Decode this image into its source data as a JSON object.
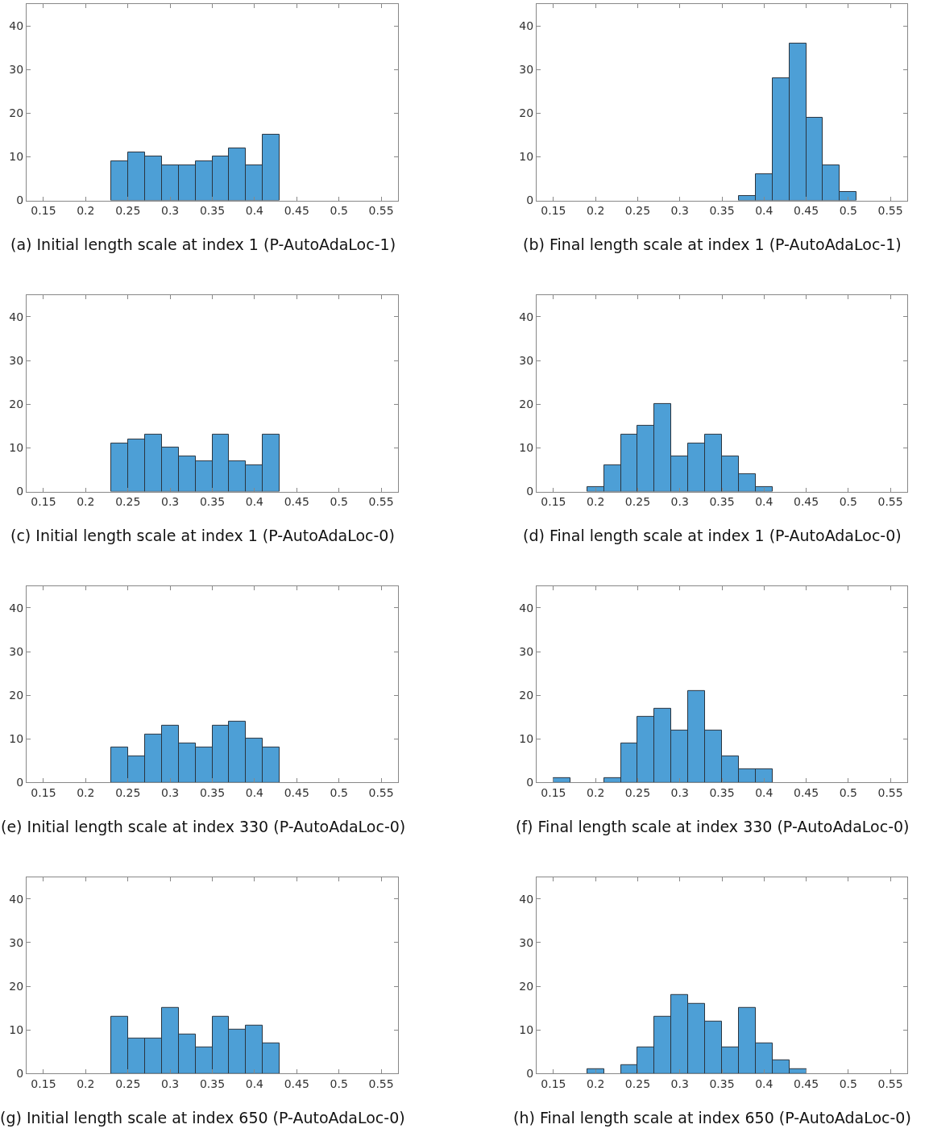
{
  "chart_data": [
    {
      "type": "histogram",
      "title": "(a) Initial length scale at index 1 (P-AutoAdaLoc-1)",
      "bins": [
        0.23,
        0.25,
        0.27,
        0.29,
        0.31,
        0.33,
        0.35,
        0.37,
        0.39,
        0.41,
        0.43
      ],
      "values": [
        9,
        11,
        10,
        8,
        8,
        9,
        10,
        12,
        8,
        15
      ],
      "color": "#4d9fd6",
      "xlim": [
        0.13,
        0.57
      ],
      "ylim": [
        0,
        45
      ],
      "xticks": [
        0.15,
        0.2,
        0.25,
        0.3,
        0.35,
        0.4,
        0.45,
        0.5,
        0.55
      ],
      "yticks": [
        0,
        10,
        20,
        30,
        40
      ]
    },
    {
      "type": "histogram",
      "title": "(b) Final length scale at index 1 (P-AutoAdaLoc-1)",
      "bins": [
        0.37,
        0.39,
        0.41,
        0.43,
        0.45,
        0.47,
        0.49,
        0.51
      ],
      "values": [
        1,
        6,
        28,
        36,
        19,
        8,
        2
      ],
      "color": "#4d9fd6",
      "xlim": [
        0.13,
        0.57
      ],
      "ylim": [
        0,
        45
      ],
      "xticks": [
        0.15,
        0.2,
        0.25,
        0.3,
        0.35,
        0.4,
        0.45,
        0.5,
        0.55
      ],
      "yticks": [
        0,
        10,
        20,
        30,
        40
      ]
    },
    {
      "type": "histogram",
      "title": "(c) Initial length scale at index 1 (P-AutoAdaLoc-0)",
      "bins": [
        0.23,
        0.25,
        0.27,
        0.29,
        0.31,
        0.33,
        0.35,
        0.37,
        0.39,
        0.41,
        0.43
      ],
      "values": [
        11,
        12,
        13,
        10,
        8,
        7,
        13,
        7,
        6,
        13
      ],
      "color": "#4d9fd6",
      "xlim": [
        0.13,
        0.57
      ],
      "ylim": [
        0,
        45
      ],
      "xticks": [
        0.15,
        0.2,
        0.25,
        0.3,
        0.35,
        0.4,
        0.45,
        0.5,
        0.55
      ],
      "yticks": [
        0,
        10,
        20,
        30,
        40
      ]
    },
    {
      "type": "histogram",
      "title": "(d) Final length scale at index 1 (P-AutoAdaLoc-0)",
      "bins": [
        0.19,
        0.21,
        0.23,
        0.25,
        0.27,
        0.29,
        0.31,
        0.33,
        0.35,
        0.37,
        0.39,
        0.41
      ],
      "values": [
        1,
        6,
        13,
        15,
        20,
        8,
        11,
        13,
        8,
        4,
        1
      ],
      "color": "#4d9fd6",
      "xlim": [
        0.13,
        0.57
      ],
      "ylim": [
        0,
        45
      ],
      "xticks": [
        0.15,
        0.2,
        0.25,
        0.3,
        0.35,
        0.4,
        0.45,
        0.5,
        0.55
      ],
      "yticks": [
        0,
        10,
        20,
        30,
        40
      ]
    },
    {
      "type": "histogram",
      "title": "(e) Initial length scale at index 330 (P-AutoAdaLoc-0)",
      "bins": [
        0.23,
        0.25,
        0.27,
        0.29,
        0.31,
        0.33,
        0.35,
        0.37,
        0.39,
        0.41,
        0.43
      ],
      "values": [
        8,
        6,
        11,
        13,
        9,
        8,
        13,
        14,
        10,
        8
      ],
      "color": "#4d9fd6",
      "xlim": [
        0.13,
        0.57
      ],
      "ylim": [
        0,
        45
      ],
      "xticks": [
        0.15,
        0.2,
        0.25,
        0.3,
        0.35,
        0.4,
        0.45,
        0.5,
        0.55
      ],
      "yticks": [
        0,
        10,
        20,
        30,
        40
      ]
    },
    {
      "type": "histogram",
      "title": "(f) Final length scale at index 330 (P-AutoAdaLoc-0)",
      "bins": [
        0.15,
        0.17,
        0.19,
        0.21,
        0.23,
        0.25,
        0.27,
        0.29,
        0.31,
        0.33,
        0.35,
        0.37,
        0.39,
        0.41
      ],
      "values": [
        1,
        0,
        0,
        1,
        9,
        15,
        17,
        12,
        21,
        12,
        6,
        3,
        3
      ],
      "color": "#4d9fd6",
      "xlim": [
        0.13,
        0.57
      ],
      "ylim": [
        0,
        45
      ],
      "xticks": [
        0.15,
        0.2,
        0.25,
        0.3,
        0.35,
        0.4,
        0.45,
        0.5,
        0.55
      ],
      "yticks": [
        0,
        10,
        20,
        30,
        40
      ]
    },
    {
      "type": "histogram",
      "title": "(g) Initial length scale at index 650 (P-AutoAdaLoc-0)",
      "bins": [
        0.23,
        0.25,
        0.27,
        0.29,
        0.31,
        0.33,
        0.35,
        0.37,
        0.39,
        0.41,
        0.43
      ],
      "values": [
        13,
        8,
        8,
        15,
        9,
        6,
        13,
        10,
        11,
        7
      ],
      "color": "#4d9fd6",
      "xlim": [
        0.13,
        0.57
      ],
      "ylim": [
        0,
        45
      ],
      "xticks": [
        0.15,
        0.2,
        0.25,
        0.3,
        0.35,
        0.4,
        0.45,
        0.5,
        0.55
      ],
      "yticks": [
        0,
        10,
        20,
        30,
        40
      ]
    },
    {
      "type": "histogram",
      "title": "(h) Final length scale at index 650 (P-AutoAdaLoc-0)",
      "bins": [
        0.19,
        0.21,
        0.23,
        0.25,
        0.27,
        0.29,
        0.31,
        0.33,
        0.35,
        0.37,
        0.39,
        0.41,
        0.43,
        0.45
      ],
      "values": [
        1,
        0,
        2,
        6,
        13,
        18,
        16,
        12,
        6,
        15,
        7,
        3,
        1
      ],
      "color": "#4d9fd6",
      "xlim": [
        0.13,
        0.57
      ],
      "ylim": [
        0,
        45
      ],
      "xticks": [
        0.15,
        0.2,
        0.25,
        0.3,
        0.35,
        0.4,
        0.45,
        0.5,
        0.55
      ],
      "yticks": [
        0,
        10,
        20,
        30,
        40
      ]
    }
  ]
}
